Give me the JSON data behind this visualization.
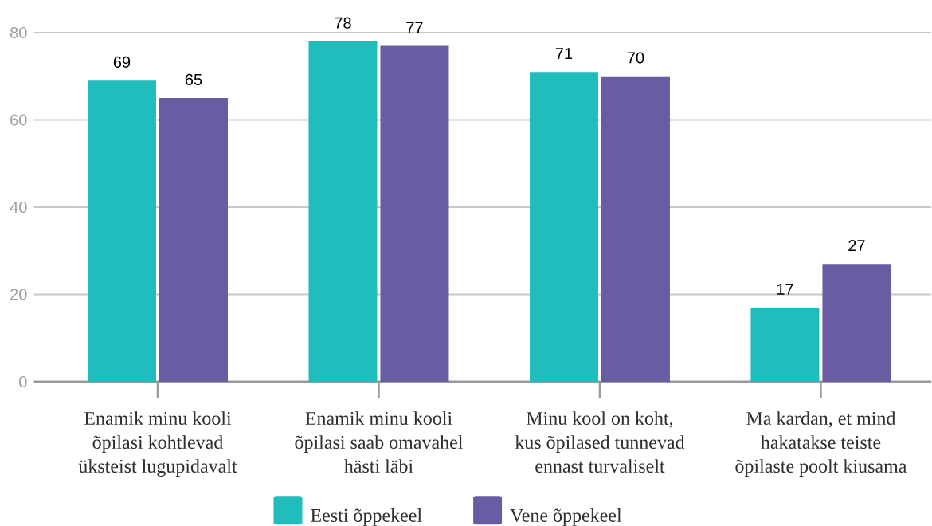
{
  "chart_data": {
    "type": "bar",
    "categories": [
      "Enamik minu kooli õpilasi kohtlevad üksteist lugupidavalt",
      "Enamik minu kooli õpilasi saab omavahel hästi läbi",
      "Minu kool on koht, kus õpilased tunnevad ennast turvaliselt",
      "Ma kardan, et mind hakatakse teiste õpilaste poolt kiusama"
    ],
    "series": [
      {
        "name": "Eesti õppekeel",
        "color": "#21bdbc",
        "values": [
          69,
          78,
          71,
          17
        ]
      },
      {
        "name": "Vene õppekeel",
        "color": "#6a5ca2",
        "values": [
          65,
          77,
          70,
          27
        ]
      }
    ],
    "ylim": [
      0,
      80
    ],
    "yticks": [
      0,
      20,
      40,
      60,
      80
    ],
    "grid": "y",
    "legend": "bottom",
    "data_labels": true
  }
}
